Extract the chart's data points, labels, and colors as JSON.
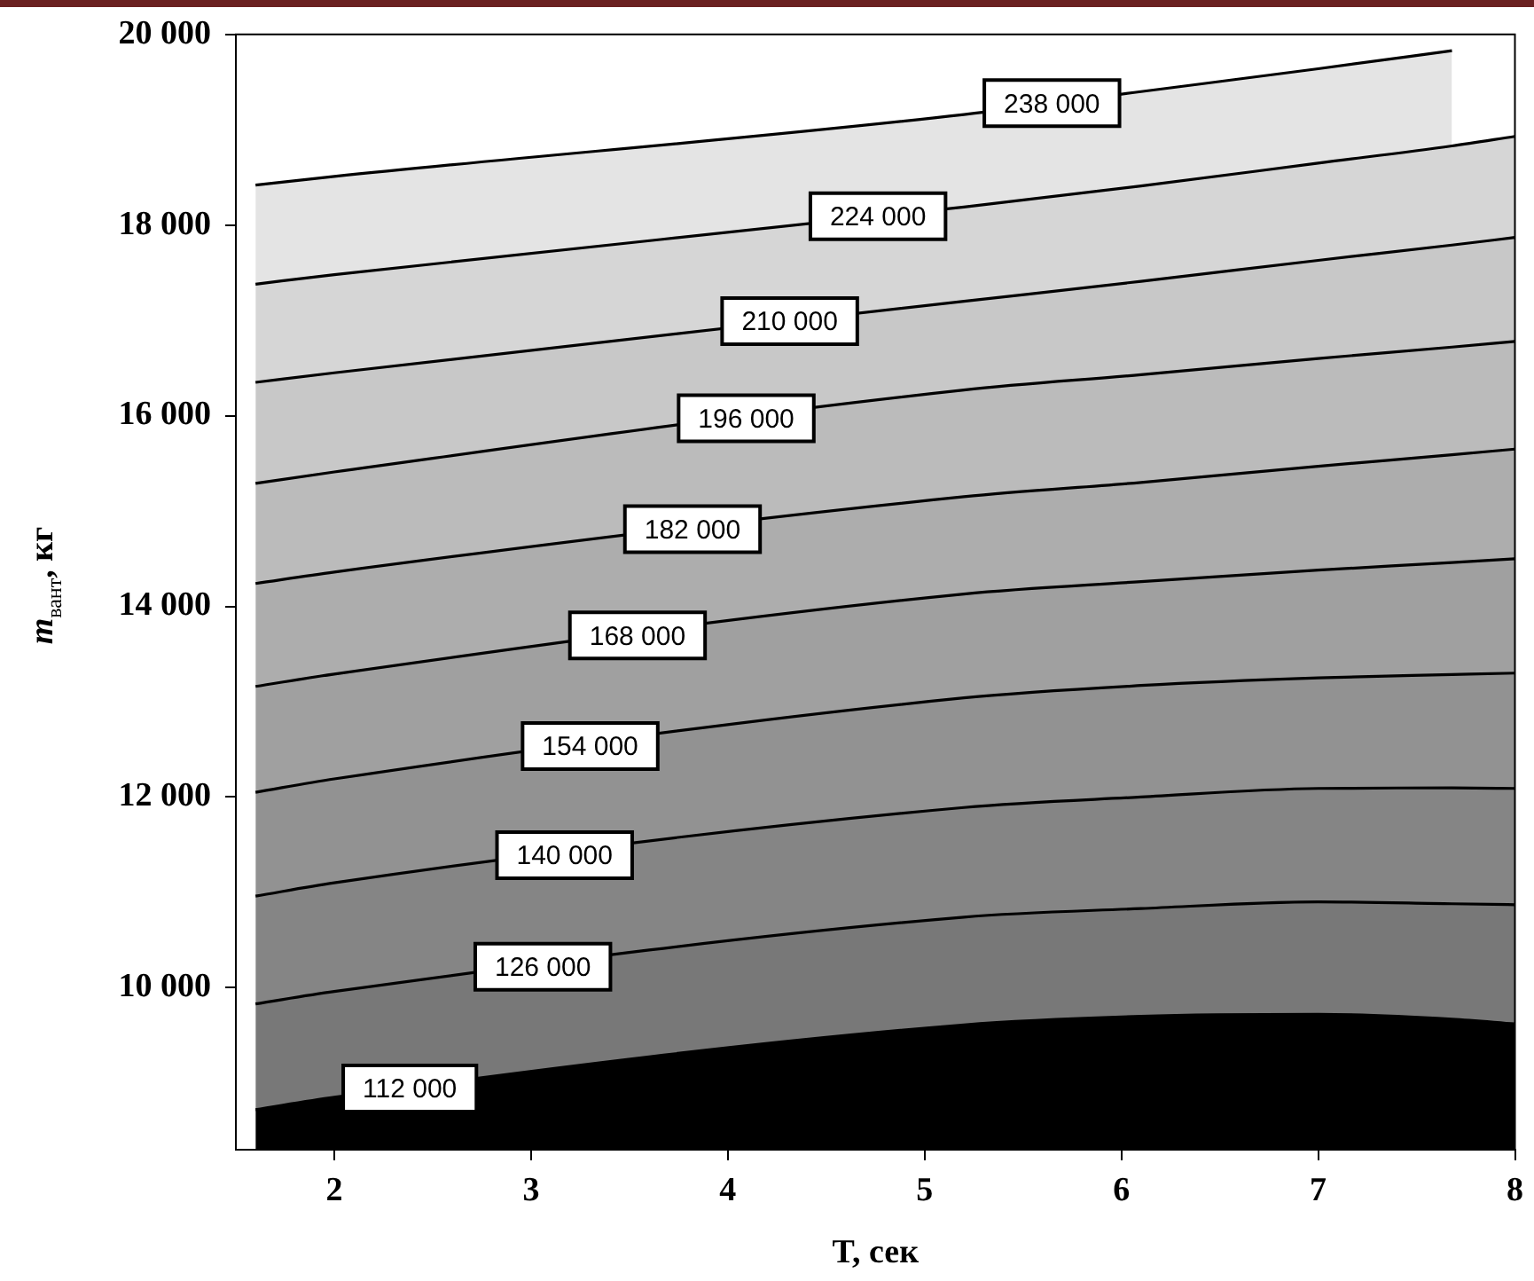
{
  "chart_data": {
    "type": "area",
    "xlabel": "T, сек",
    "ylabel": "m$_{вант}$, кг",
    "xlim": [
      1.5,
      8
    ],
    "xticks": [
      2,
      3,
      4,
      5,
      6,
      7,
      8
    ],
    "ylim": [
      8300,
      20000
    ],
    "yticks": [
      {
        "value": 10000,
        "label": "10 000"
      },
      {
        "value": 12000,
        "label": "12 000"
      },
      {
        "value": 14000,
        "label": "14 000"
      },
      {
        "value": 16000,
        "label": "16 000"
      },
      {
        "value": 18000,
        "label": "18 000"
      },
      {
        "value": 20000,
        "label": "20 000"
      }
    ],
    "grid": false,
    "legend": false,
    "marker": "none",
    "line_style": "solid",
    "x": [
      1.6,
      2.0,
      5.2,
      6.1,
      7.0,
      7.68,
      8
    ],
    "series": [
      {
        "name": "112 000",
        "color": "#000000",
        "values": [
          8720,
          8850,
          9610,
          9700,
          9720,
          9670,
          9620
        ]
      },
      {
        "name": "126 000",
        "color": "#787878",
        "values": [
          9830,
          9960,
          10740,
          10830,
          10900,
          10880,
          10870
        ]
      },
      {
        "name": "140 000",
        "color": "#858585",
        "values": [
          10960,
          11100,
          11890,
          12000,
          12090,
          12095,
          12090
        ]
      },
      {
        "name": "154 000",
        "color": "#929292",
        "values": [
          12050,
          12190,
          13040,
          13170,
          13250,
          13285,
          13300
        ]
      },
      {
        "name": "168 000",
        "color": "#a0a0a0",
        "values": [
          13160,
          13290,
          14130,
          14260,
          14380,
          14460,
          14500
        ]
      },
      {
        "name": "182 000",
        "color": "#adadad",
        "values": [
          14240,
          14360,
          15150,
          15300,
          15470,
          15590,
          15650
        ]
      },
      {
        "name": "196 000",
        "color": "#bbbbbb",
        "values": [
          15290,
          15410,
          16270,
          16430,
          16600,
          16720,
          16780
        ]
      },
      {
        "name": "210 000",
        "color": "#c8c8c8",
        "values": [
          16350,
          16450,
          17200,
          17410,
          17630,
          17790,
          17870
        ]
      },
      {
        "name": "224 000",
        "color": "#d6d6d6",
        "values": [
          17380,
          17480,
          18190,
          18410,
          18650,
          18830,
          18930
        ]
      },
      {
        "name": "238 000",
        "color": "#e4e4e4",
        "values": [
          18420,
          18510,
          19160,
          19400,
          19640,
          19830,
          null
        ]
      }
    ]
  }
}
